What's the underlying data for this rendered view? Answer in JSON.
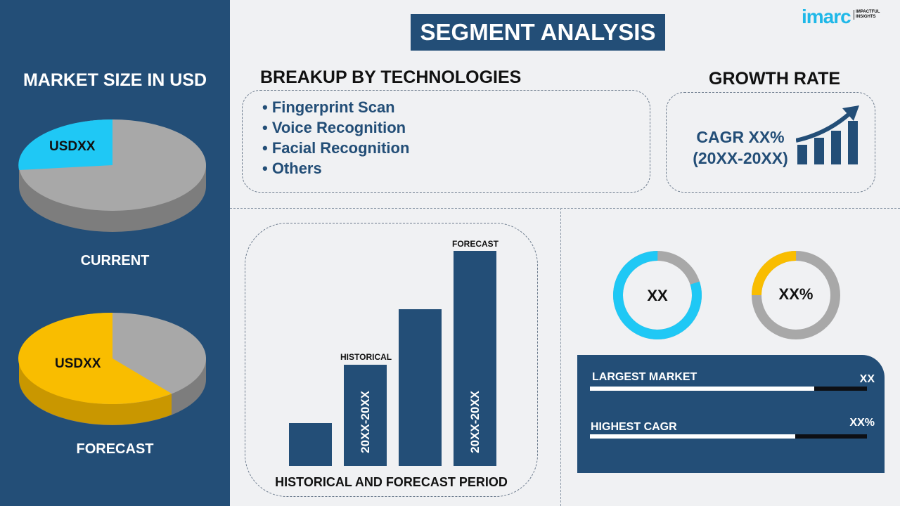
{
  "title": "SEGMENT ANALYSIS",
  "logo": {
    "text": "imarc",
    "tagline": "IMPACTFUL INSIGHTS"
  },
  "left": {
    "heading": "MARKET SIZE IN USD",
    "current": {
      "label": "CURRENT",
      "value": "USDXX"
    },
    "forecast": {
      "label": "FORECAST",
      "value": "USDXX"
    }
  },
  "breakup": {
    "heading": "BREAKUP BY TECHNOLOGIES",
    "items": [
      "• Fingerprint Scan",
      "• Voice Recognition",
      "• Facial Recognition",
      "• Others"
    ]
  },
  "growth": {
    "heading": "GROWTH RATE",
    "cagr": "CAGR XX%",
    "period": "(20XX-20XX)"
  },
  "bars": {
    "historical_label": "HISTORICAL",
    "forecast_label": "FORECAST",
    "period_label": "20XX-20XX",
    "caption": "HISTORICAL AND FORECAST PERIOD",
    "relative_heights": [
      0.2,
      0.47,
      0.73,
      1.0
    ]
  },
  "donuts": [
    {
      "label": "XX",
      "fraction": 0.8,
      "color": "#1fc8f5"
    },
    {
      "label": "XX%",
      "fraction": 0.25,
      "color": "#f9bd00"
    }
  ],
  "kpi": {
    "largest": {
      "label": "LARGEST MARKET",
      "value": "XX",
      "fill": 0.81
    },
    "cagr": {
      "label": "HIGHEST CAGR",
      "value": "XX%",
      "fill": 0.74
    }
  },
  "colors": {
    "navy": "#234e77",
    "cyan": "#1fc8f5",
    "yellow": "#f9bd00",
    "gray": "#a8a8a8"
  }
}
